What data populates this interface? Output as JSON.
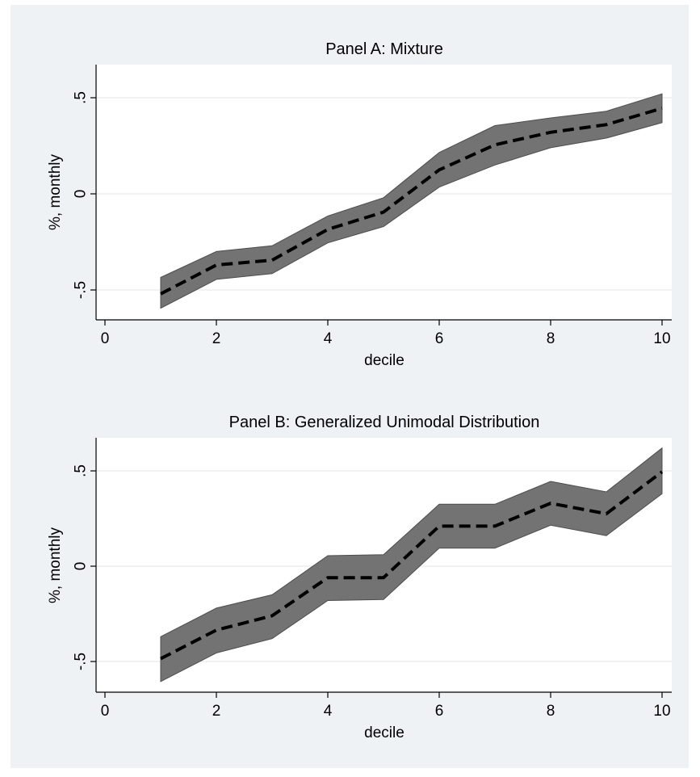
{
  "chart_data": [
    {
      "type": "area",
      "title": "Panel A: Mixture",
      "xlabel": "decile",
      "ylabel": "%, monthly",
      "xlim": [
        0,
        10
      ],
      "ylim": [
        -0.65,
        0.67
      ],
      "xticks": [
        "0",
        "2",
        "4",
        "6",
        "8",
        "10"
      ],
      "xtick_values": [
        0,
        2,
        4,
        6,
        8,
        10
      ],
      "yticks": [
        "-.5",
        "0",
        ".5"
      ],
      "ytick_values": [
        -0.5,
        0,
        0.5
      ],
      "grid": "horizontal",
      "x": [
        1,
        2,
        3,
        4,
        5,
        6,
        7,
        8,
        9,
        10
      ],
      "series": [
        {
          "role": "estimate",
          "values": [
            -0.52,
            -0.37,
            -0.345,
            -0.185,
            -0.095,
            0.125,
            0.255,
            0.32,
            0.36,
            0.445
          ],
          "style": "dashed"
        },
        {
          "role": "ci_upper",
          "values": [
            -0.435,
            -0.3,
            -0.27,
            -0.115,
            -0.02,
            0.215,
            0.355,
            0.395,
            0.43,
            0.52
          ]
        },
        {
          "role": "ci_lower",
          "values": [
            -0.595,
            -0.445,
            -0.415,
            -0.255,
            -0.17,
            0.035,
            0.15,
            0.24,
            0.29,
            0.37
          ]
        }
      ]
    },
    {
      "type": "area",
      "title": "Panel B: Generalized Unimodal Distribution",
      "xlabel": "decile",
      "ylabel": "%, monthly",
      "xlim": [
        0,
        10
      ],
      "ylim": [
        -0.66,
        0.67
      ],
      "xticks": [
        "0",
        "2",
        "4",
        "6",
        "8",
        "10"
      ],
      "xtick_values": [
        0,
        2,
        4,
        6,
        8,
        10
      ],
      "yticks": [
        "-.5",
        "0",
        ".5"
      ],
      "ytick_values": [
        -0.5,
        0,
        0.5
      ],
      "grid": "horizontal",
      "x": [
        1,
        2,
        3,
        4,
        5,
        6,
        7,
        8,
        9,
        10
      ],
      "series": [
        {
          "role": "estimate",
          "values": [
            -0.485,
            -0.335,
            -0.26,
            -0.06,
            -0.06,
            0.21,
            0.21,
            0.33,
            0.275,
            0.495
          ],
          "style": "dashed"
        },
        {
          "role": "ci_upper",
          "values": [
            -0.37,
            -0.22,
            -0.15,
            0.055,
            0.06,
            0.325,
            0.325,
            0.445,
            0.39,
            0.62
          ]
        },
        {
          "role": "ci_lower",
          "values": [
            -0.605,
            -0.455,
            -0.38,
            -0.18,
            -0.175,
            0.095,
            0.095,
            0.215,
            0.16,
            0.38
          ]
        }
      ]
    }
  ]
}
